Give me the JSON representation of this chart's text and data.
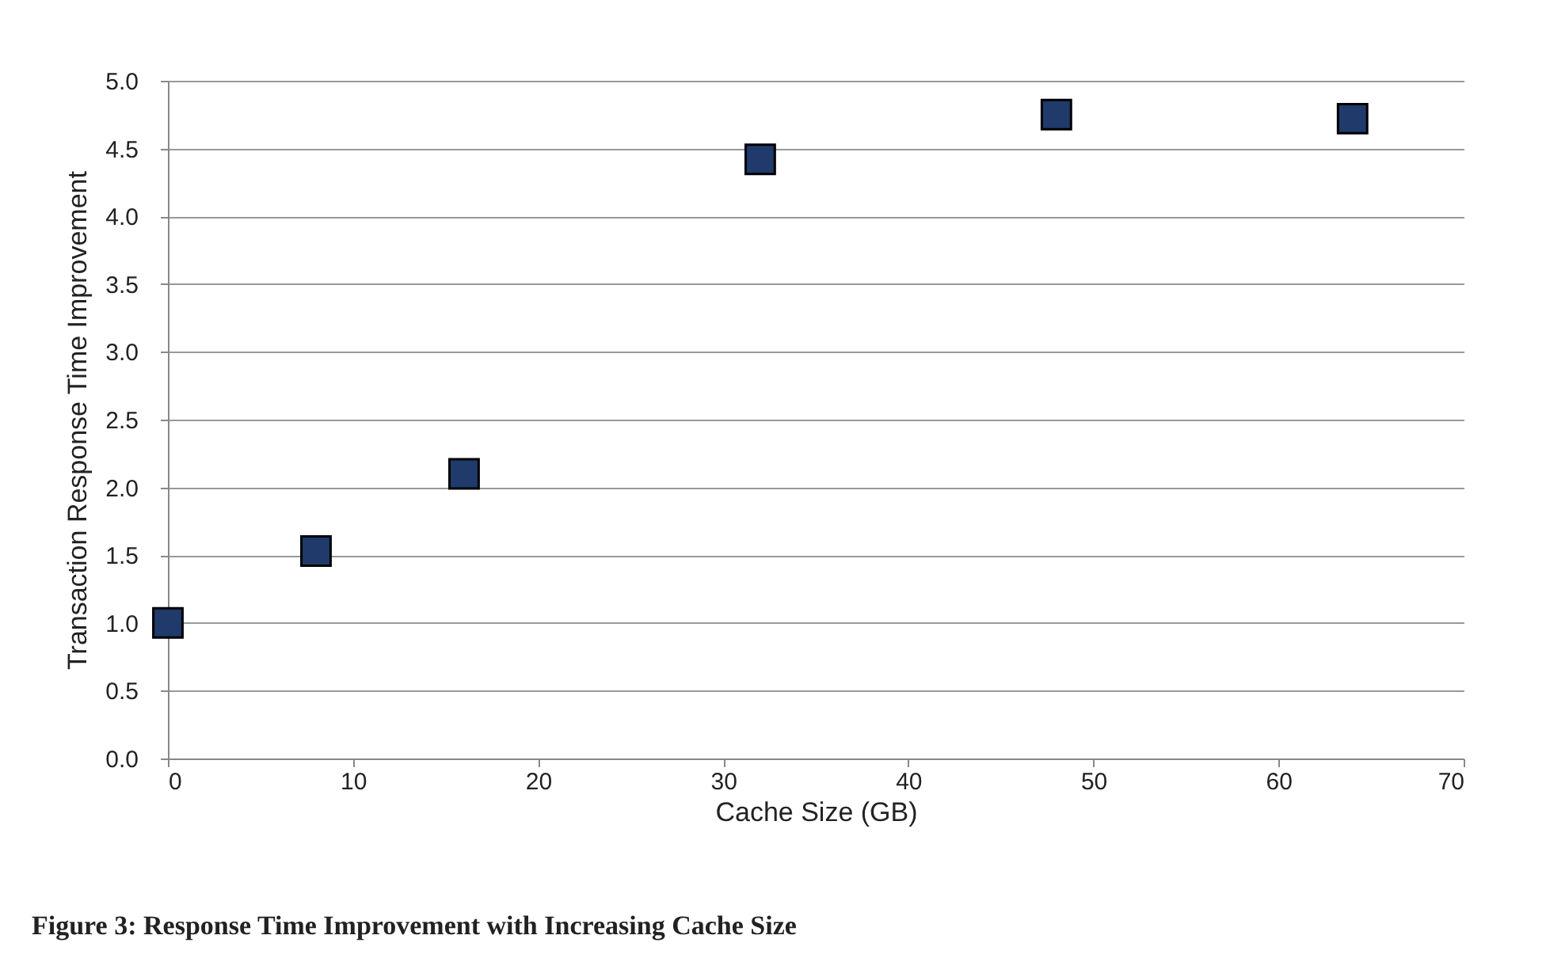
{
  "chart_data": {
    "type": "scatter",
    "xlabel": "Cache Size (GB)",
    "ylabel": "Transaction Response Time Improvement",
    "x": [
      0,
      8,
      16,
      32,
      48,
      64
    ],
    "series": [
      {
        "color": "#1f3a6b",
        "values": [
          1.0,
          1.53,
          2.1,
          4.42,
          4.75,
          4.72
        ]
      }
    ],
    "xlim": [
      0,
      70
    ],
    "xticks": [
      0,
      10,
      20,
      30,
      40,
      50,
      60,
      70
    ],
    "ylim": [
      0,
      5
    ],
    "yticks": [
      {
        "value": 0,
        "label": "0.0"
      },
      {
        "value": 0.5,
        "label": "0.5"
      },
      {
        "value": 1,
        "label": "1.0"
      },
      {
        "value": 1.5,
        "label": "1.5"
      },
      {
        "value": 2,
        "label": "2.0"
      },
      {
        "value": 2.5,
        "label": "2.5"
      },
      {
        "value": 3,
        "label": "3.0"
      },
      {
        "value": 3.5,
        "label": "3.5"
      },
      {
        "value": 4,
        "label": "4.0"
      },
      {
        "value": 4.5,
        "label": "4.5"
      },
      {
        "value": 5,
        "label": "5.0"
      }
    ],
    "grid": "y",
    "marker": "square",
    "annotations": [
      "Figure 3: Response Time Improvement with Increasing Cache Size"
    ]
  }
}
